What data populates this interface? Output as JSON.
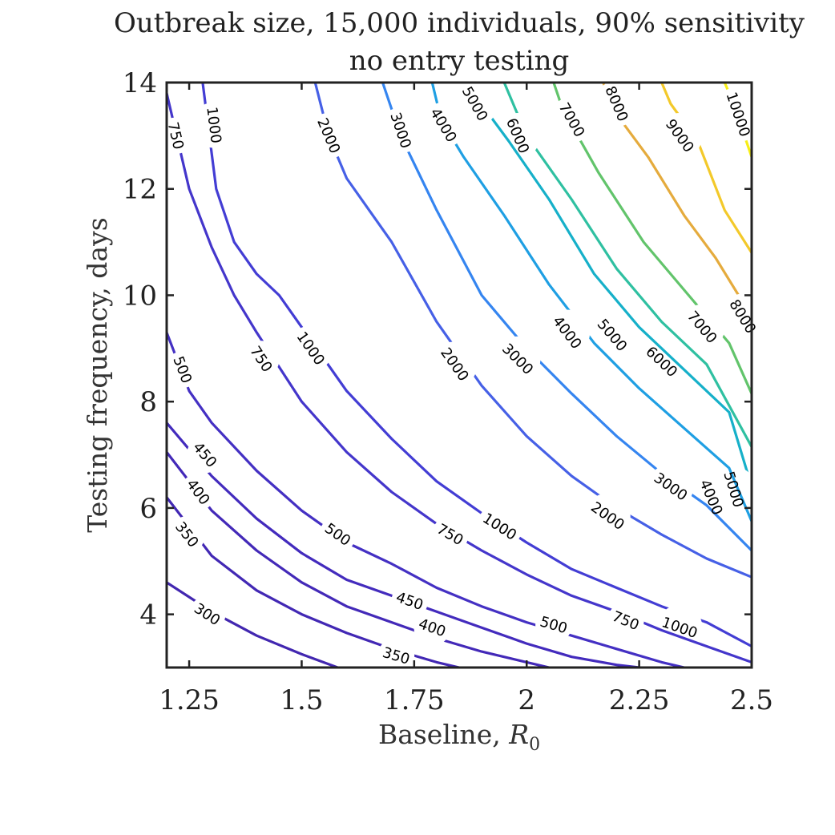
{
  "chart_data": {
    "type": "contour",
    "title": "Outbreak size, 15,000 individuals, 90% sensitivity",
    "subtitle": "no entry testing",
    "xlabel_text": "Baseline, ",
    "xlabel_symbol": "R",
    "xlabel_subscript": "0",
    "ylabel": "Testing frequency, days",
    "xlim": [
      1.2,
      2.5
    ],
    "ylim": [
      3,
      14
    ],
    "xticks": [
      1.25,
      1.5,
      1.75,
      2,
      2.25,
      2.5
    ],
    "xtick_labels": [
      "1.25",
      "1.5",
      "1.75",
      "2",
      "2.25",
      "2.5"
    ],
    "yticks": [
      4,
      6,
      8,
      10,
      12,
      14
    ],
    "ytick_labels": [
      "4",
      "6",
      "8",
      "10",
      "12",
      "14"
    ],
    "grid": false,
    "contours": [
      {
        "level": 300,
        "label": "300",
        "color": "#4227b0",
        "points": [
          [
            1.2,
            4.6
          ],
          [
            1.3,
            4.05
          ],
          [
            1.4,
            3.6
          ],
          [
            1.5,
            3.25
          ],
          [
            1.58,
            3.0
          ]
        ],
        "label_positions": [
          [
            1.29,
            4.0
          ]
        ]
      },
      {
        "level": 350,
        "label": "350",
        "color": "#4228b4",
        "points": [
          [
            1.2,
            6.2
          ],
          [
            1.3,
            5.1
          ],
          [
            1.4,
            4.45
          ],
          [
            1.5,
            4.0
          ],
          [
            1.6,
            3.65
          ],
          [
            1.7,
            3.35
          ],
          [
            1.8,
            3.1
          ],
          [
            1.85,
            3.0
          ]
        ],
        "label_positions": [
          [
            1.245,
            5.5
          ],
          [
            1.71,
            3.22
          ]
        ]
      },
      {
        "level": 400,
        "label": "400",
        "color": "#4329b8",
        "points": [
          [
            1.2,
            7.05
          ],
          [
            1.3,
            5.95
          ],
          [
            1.4,
            5.2
          ],
          [
            1.5,
            4.6
          ],
          [
            1.6,
            4.15
          ],
          [
            1.7,
            3.85
          ],
          [
            1.8,
            3.55
          ],
          [
            1.9,
            3.3
          ],
          [
            2.0,
            3.1
          ],
          [
            2.05,
            3.0
          ]
        ],
        "label_positions": [
          [
            1.27,
            6.3
          ],
          [
            1.79,
            3.75
          ]
        ]
      },
      {
        "level": 450,
        "label": "450",
        "color": "#432bbd",
        "points": [
          [
            1.2,
            7.6
          ],
          [
            1.3,
            6.6
          ],
          [
            1.4,
            5.8
          ],
          [
            1.5,
            5.15
          ],
          [
            1.6,
            4.65
          ],
          [
            1.7,
            4.35
          ],
          [
            1.8,
            4.05
          ],
          [
            1.9,
            3.75
          ],
          [
            2.0,
            3.45
          ],
          [
            2.1,
            3.2
          ],
          [
            2.2,
            3.05
          ],
          [
            2.25,
            3.0
          ]
        ],
        "label_positions": [
          [
            1.285,
            7.0
          ],
          [
            1.74,
            4.25
          ]
        ]
      },
      {
        "level": 500,
        "label": "500",
        "color": "#4430c3",
        "points": [
          [
            1.2,
            9.3
          ],
          [
            1.25,
            8.2
          ],
          [
            1.3,
            7.6
          ],
          [
            1.4,
            6.7
          ],
          [
            1.5,
            5.95
          ],
          [
            1.6,
            5.35
          ],
          [
            1.7,
            4.95
          ],
          [
            1.8,
            4.5
          ],
          [
            1.9,
            4.15
          ],
          [
            2.0,
            3.85
          ],
          [
            2.1,
            3.6
          ],
          [
            2.2,
            3.35
          ],
          [
            2.3,
            3.1
          ],
          [
            2.35,
            3.0
          ]
        ],
        "label_positions": [
          [
            1.235,
            8.6
          ],
          [
            1.58,
            5.5
          ],
          [
            2.06,
            3.8
          ]
        ]
      },
      {
        "level": 750,
        "label": "750",
        "color": "#4436cb",
        "points": [
          [
            1.2,
            13.8
          ],
          [
            1.25,
            12.0
          ],
          [
            1.3,
            10.9
          ],
          [
            1.35,
            10.0
          ],
          [
            1.4,
            9.3
          ],
          [
            1.5,
            8.0
          ],
          [
            1.6,
            7.05
          ],
          [
            1.7,
            6.3
          ],
          [
            1.8,
            5.7
          ],
          [
            1.9,
            5.2
          ],
          [
            2.0,
            4.75
          ],
          [
            2.1,
            4.35
          ],
          [
            2.2,
            4.05
          ],
          [
            2.3,
            3.7
          ],
          [
            2.4,
            3.4
          ],
          [
            2.5,
            3.1
          ]
        ],
        "label_positions": [
          [
            1.22,
            13.0
          ],
          [
            1.41,
            8.8
          ],
          [
            1.83,
            5.5
          ],
          [
            2.22,
            3.88
          ]
        ]
      },
      {
        "level": 1000,
        "label": "1000",
        "color": "#433dd4",
        "points": [
          [
            1.28,
            14.0
          ],
          [
            1.31,
            12.0
          ],
          [
            1.35,
            11.0
          ],
          [
            1.4,
            10.4
          ],
          [
            1.45,
            10.0
          ],
          [
            1.5,
            9.4
          ],
          [
            1.6,
            8.2
          ],
          [
            1.7,
            7.3
          ],
          [
            1.8,
            6.5
          ],
          [
            1.9,
            5.9
          ],
          [
            2.0,
            5.35
          ],
          [
            2.1,
            4.85
          ],
          [
            2.2,
            4.5
          ],
          [
            2.3,
            4.15
          ],
          [
            2.4,
            3.85
          ],
          [
            2.5,
            3.4
          ]
        ],
        "label_positions": [
          [
            1.305,
            13.2
          ],
          [
            1.52,
            9.0
          ],
          [
            1.94,
            5.65
          ],
          [
            2.34,
            3.75
          ]
        ]
      },
      {
        "level": 2000,
        "label": "2000",
        "color": "#4660e6",
        "points": [
          [
            1.53,
            14.0
          ],
          [
            1.56,
            13.0
          ],
          [
            1.6,
            12.2
          ],
          [
            1.65,
            11.6
          ],
          [
            1.7,
            11.0
          ],
          [
            1.8,
            9.5
          ],
          [
            1.9,
            8.3
          ],
          [
            2.0,
            7.35
          ],
          [
            2.1,
            6.6
          ],
          [
            2.2,
            6.0
          ],
          [
            2.3,
            5.5
          ],
          [
            2.4,
            5.05
          ],
          [
            2.5,
            4.7
          ]
        ],
        "label_positions": [
          [
            1.56,
            13.0
          ],
          [
            1.84,
            8.7
          ],
          [
            2.18,
            5.85
          ]
        ]
      },
      {
        "level": 3000,
        "label": "3000",
        "color": "#3585f0",
        "points": [
          [
            1.68,
            14.0
          ],
          [
            1.72,
            13.0
          ],
          [
            1.8,
            11.6
          ],
          [
            1.9,
            10.0
          ],
          [
            2.0,
            9.0
          ],
          [
            2.1,
            8.15
          ],
          [
            2.2,
            7.35
          ],
          [
            2.3,
            6.65
          ],
          [
            2.4,
            6.05
          ],
          [
            2.5,
            5.2
          ]
        ],
        "label_positions": [
          [
            1.72,
            13.1
          ],
          [
            1.98,
            8.8
          ],
          [
            2.32,
            6.4
          ]
        ]
      },
      {
        "level": 4000,
        "label": "4000",
        "color": "#1f9fe3",
        "points": [
          [
            1.79,
            14.0
          ],
          [
            1.81,
            13.3
          ],
          [
            1.86,
            12.6
          ],
          [
            1.95,
            11.5
          ],
          [
            2.05,
            10.2
          ],
          [
            2.15,
            9.1
          ],
          [
            2.25,
            8.25
          ],
          [
            2.35,
            7.5
          ],
          [
            2.45,
            6.75
          ],
          [
            2.5,
            5.75
          ]
        ],
        "label_positions": [
          [
            1.815,
            13.2
          ],
          [
            2.09,
            9.3
          ],
          [
            2.41,
            6.2
          ]
        ]
      },
      {
        "level": 5000,
        "label": "5000",
        "color": "#16b0c9",
        "points": [
          [
            1.87,
            14.0
          ],
          [
            1.89,
            13.7
          ],
          [
            1.96,
            12.9
          ],
          [
            2.05,
            11.8
          ],
          [
            2.15,
            10.4
          ],
          [
            2.25,
            9.4
          ],
          [
            2.35,
            8.6
          ],
          [
            2.45,
            7.8
          ],
          [
            2.5,
            6.4
          ]
        ],
        "label_positions": [
          [
            1.885,
            13.6
          ],
          [
            2.19,
            9.25
          ],
          [
            2.46,
            6.35
          ]
        ]
      },
      {
        "level": 6000,
        "label": "6000",
        "color": "#2fc0a1",
        "points": [
          [
            1.95,
            14.0
          ],
          [
            2.0,
            13.0
          ],
          [
            2.1,
            11.8
          ],
          [
            2.2,
            10.5
          ],
          [
            2.3,
            9.5
          ],
          [
            2.4,
            8.7
          ],
          [
            2.5,
            7.15
          ]
        ],
        "label_positions": [
          [
            1.98,
            13.0
          ],
          [
            2.3,
            8.75
          ]
        ]
      },
      {
        "level": 7000,
        "label": "7000",
        "color": "#62c46b",
        "points": [
          [
            2.06,
            14.0
          ],
          [
            2.08,
            13.5
          ],
          [
            2.16,
            12.3
          ],
          [
            2.26,
            11.0
          ],
          [
            2.36,
            10.0
          ],
          [
            2.45,
            9.1
          ],
          [
            2.5,
            8.15
          ]
        ],
        "label_positions": [
          [
            2.1,
            13.3
          ],
          [
            2.39,
            9.4
          ]
        ]
      },
      {
        "level": 8000,
        "label": "8000",
        "color": "#e5ab3d",
        "points": [
          [
            2.17,
            14.0
          ],
          [
            2.2,
            13.4
          ],
          [
            2.27,
            12.6
          ],
          [
            2.35,
            11.5
          ],
          [
            2.42,
            10.7
          ],
          [
            2.5,
            9.6
          ]
        ],
        "label_positions": [
          [
            2.2,
            13.6
          ],
          [
            2.48,
            9.6
          ]
        ]
      },
      {
        "level": 9000,
        "label": "9000",
        "color": "#f3c92a",
        "points": [
          [
            2.3,
            14.0
          ],
          [
            2.32,
            13.6
          ],
          [
            2.38,
            12.9
          ],
          [
            2.44,
            11.6
          ],
          [
            2.5,
            10.8
          ]
        ],
        "label_positions": [
          [
            2.34,
            13.0
          ]
        ]
      },
      {
        "level": 10000,
        "label": "10000",
        "color": "#f7ee17",
        "points": [
          [
            2.44,
            14.0
          ],
          [
            2.46,
            13.6
          ],
          [
            2.5,
            12.6
          ]
        ],
        "label_positions": [
          [
            2.47,
            13.4
          ]
        ]
      }
    ]
  }
}
